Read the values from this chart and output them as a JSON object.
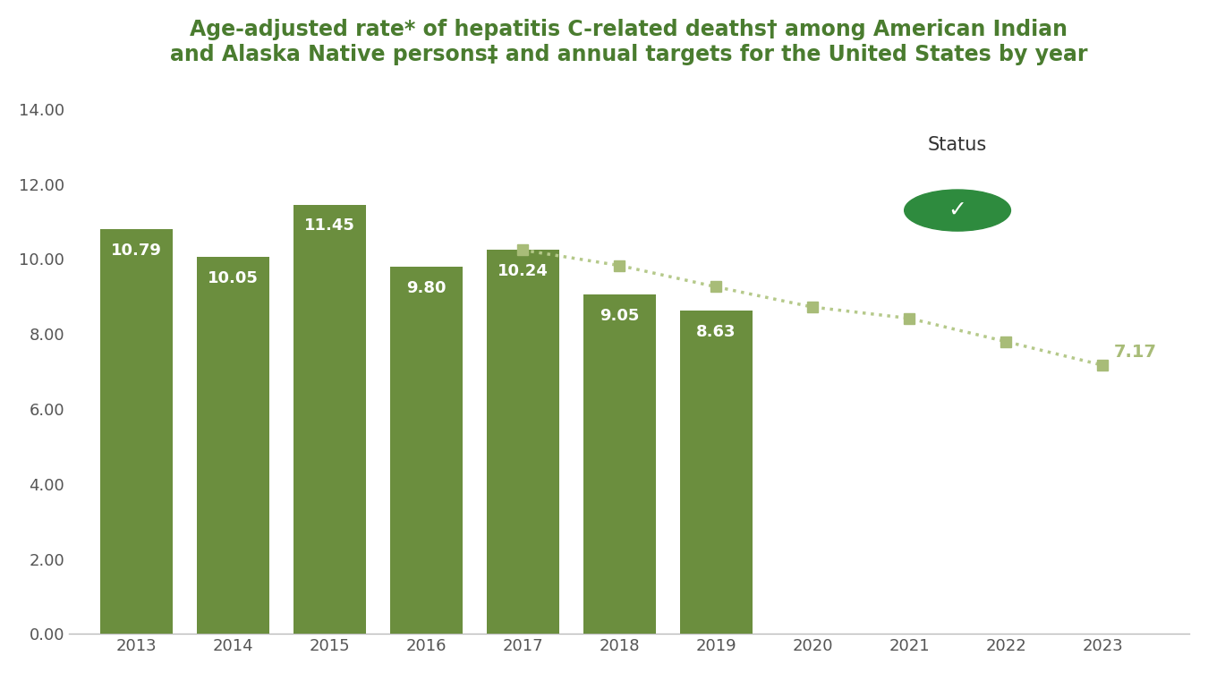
{
  "title": "Age-adjusted rate* of hepatitis C-related deaths† among American Indian\nand Alaska Native persons‡ and annual targets for the United States by year",
  "title_color": "#4a7c2f",
  "bar_years": [
    2013,
    2014,
    2015,
    2016,
    2017,
    2018,
    2019
  ],
  "bar_values": [
    10.79,
    10.05,
    11.45,
    9.8,
    10.24,
    9.05,
    8.63
  ],
  "bar_color": "#6b8e3e",
  "target_years": [
    2017,
    2018,
    2019,
    2020,
    2021,
    2022,
    2023
  ],
  "target_values": [
    10.24,
    9.83,
    9.26,
    8.72,
    8.42,
    7.8,
    7.17
  ],
  "target_color": "#a8bc78",
  "target_line_color": "#b5c98a",
  "last_target_value": 7.17,
  "last_target_year": 2023,
  "ylim": [
    0,
    14.8
  ],
  "yticks": [
    0.0,
    2.0,
    4.0,
    6.0,
    8.0,
    10.0,
    12.0,
    14.0
  ],
  "ytick_labels": [
    "0.00",
    "2.00",
    "4.00",
    "6.00",
    "8.00",
    "10.00",
    "12.00",
    "14.00"
  ],
  "all_years": [
    2013,
    2014,
    2015,
    2016,
    2017,
    2018,
    2019,
    2020,
    2021,
    2022,
    2023
  ],
  "background_color": "#ffffff",
  "status_label": "Status",
  "checkmark_color": "#2e8b3e",
  "bar_label_fontsize": 13,
  "title_fontsize": 17
}
